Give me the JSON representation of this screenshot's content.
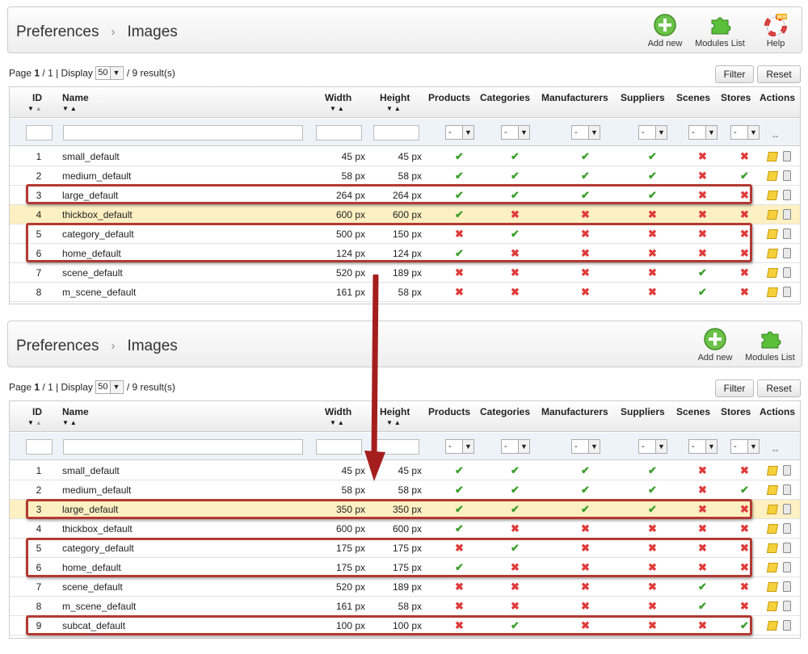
{
  "crumb": {
    "first": "Preferences",
    "sep": "›",
    "second": "Images"
  },
  "toolbar": {
    "add_new": "Add new",
    "modules_list": "Modules List",
    "help": "Help",
    "help_badge": "NEW"
  },
  "pager": {
    "page_label": "Page",
    "page_current": "1",
    "page_total": "/ 1 | Display",
    "display_value": "50",
    "results": "/ 9 result(s)"
  },
  "buttons": {
    "filter": "Filter",
    "reset": "Reset"
  },
  "columns": {
    "id": "ID",
    "name": "Name",
    "width": "Width",
    "height": "Height",
    "products": "Products",
    "categories": "Categories",
    "manufacturers": "Manufacturers",
    "suppliers": "Suppliers",
    "scenes": "Scenes",
    "stores": "Stores",
    "actions": "Actions"
  },
  "filter": {
    "select_value": "-",
    "actions_dash": "--"
  },
  "colors": {
    "highlight_row": "#fdf0c2",
    "red_box": "#b23a33",
    "check": "#3c9f2c",
    "cross": "#e03b3b"
  },
  "before_rows": [
    {
      "id": "1",
      "name": "small_default",
      "width": "45 px",
      "height": "45 px",
      "flags": [
        1,
        1,
        1,
        1,
        0,
        0
      ]
    },
    {
      "id": "2",
      "name": "medium_default",
      "width": "58 px",
      "height": "58 px",
      "flags": [
        1,
        1,
        1,
        1,
        0,
        1
      ]
    },
    {
      "id": "3",
      "name": "large_default",
      "width": "264 px",
      "height": "264 px",
      "flags": [
        1,
        1,
        1,
        1,
        0,
        0
      ]
    },
    {
      "id": "4",
      "name": "thickbox_default",
      "width": "600 px",
      "height": "600 px",
      "flags": [
        1,
        0,
        0,
        0,
        0,
        0
      ]
    },
    {
      "id": "5",
      "name": "category_default",
      "width": "500 px",
      "height": "150 px",
      "flags": [
        0,
        1,
        0,
        0,
        0,
        0
      ]
    },
    {
      "id": "6",
      "name": "home_default",
      "width": "124 px",
      "height": "124 px",
      "flags": [
        1,
        0,
        0,
        0,
        0,
        0
      ]
    },
    {
      "id": "7",
      "name": "scene_default",
      "width": "520 px",
      "height": "189 px",
      "flags": [
        0,
        0,
        0,
        0,
        1,
        0
      ]
    },
    {
      "id": "8",
      "name": "m_scene_default",
      "width": "161 px",
      "height": "58 px",
      "flags": [
        0,
        0,
        0,
        0,
        1,
        0
      ]
    }
  ],
  "after_rows": [
    {
      "id": "1",
      "name": "small_default",
      "width": "45 px",
      "height": "45 px",
      "flags": [
        1,
        1,
        1,
        1,
        0,
        0
      ]
    },
    {
      "id": "2",
      "name": "medium_default",
      "width": "58 px",
      "height": "58 px",
      "flags": [
        1,
        1,
        1,
        1,
        0,
        1
      ]
    },
    {
      "id": "3",
      "name": "large_default",
      "width": "350 px",
      "height": "350 px",
      "flags": [
        1,
        1,
        1,
        1,
        0,
        0
      ]
    },
    {
      "id": "4",
      "name": "thickbox_default",
      "width": "600 px",
      "height": "600 px",
      "flags": [
        1,
        0,
        0,
        0,
        0,
        0
      ]
    },
    {
      "id": "5",
      "name": "category_default",
      "width": "175 px",
      "height": "175 px",
      "flags": [
        0,
        1,
        0,
        0,
        0,
        0
      ]
    },
    {
      "id": "6",
      "name": "home_default",
      "width": "175 px",
      "height": "175 px",
      "flags": [
        1,
        0,
        0,
        0,
        0,
        0
      ]
    },
    {
      "id": "7",
      "name": "scene_default",
      "width": "520 px",
      "height": "189 px",
      "flags": [
        0,
        0,
        0,
        0,
        1,
        0
      ]
    },
    {
      "id": "8",
      "name": "m_scene_default",
      "width": "161 px",
      "height": "58 px",
      "flags": [
        0,
        0,
        0,
        0,
        1,
        0
      ]
    },
    {
      "id": "9",
      "name": "subcat_default",
      "width": "100 px",
      "height": "100 px",
      "flags": [
        0,
        1,
        0,
        0,
        0,
        1
      ]
    }
  ]
}
